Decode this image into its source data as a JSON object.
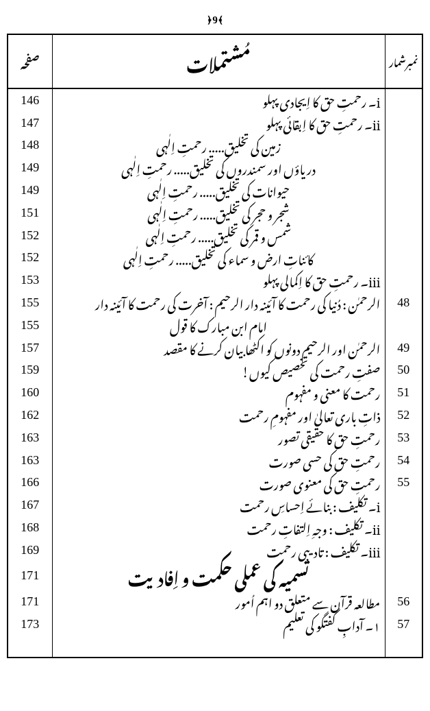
{
  "page_number": "9",
  "headers": {
    "serial": "نمبرشمار",
    "title": "مُشتملات",
    "page": "صفحہ"
  },
  "rows": [
    {
      "serial": "",
      "title": "i۔ رحمتِ حق کا اِیجادی پہلو",
      "page": "146",
      "style": "right"
    },
    {
      "serial": "",
      "title": "ii۔ رحمتِ حق کا اِبقائی پہلو",
      "page": "147",
      "style": "right"
    },
    {
      "serial": "",
      "title": "زمین کی تخلیق..... رحمتِ اِلٰہی",
      "page": "148",
      "style": "center"
    },
    {
      "serial": "",
      "title": "دریاؤں اور سمندروں کی تخلیق..... رحمتِ اِلٰہی",
      "page": "149",
      "style": "center"
    },
    {
      "serial": "",
      "title": "حیوانات کی تخلیق..... رحمتِ اِلٰہی",
      "page": "149",
      "style": "center"
    },
    {
      "serial": "",
      "title": "شجر و حجر کی تخلیق..... رحمتِ اِلٰہی",
      "page": "151",
      "style": "center"
    },
    {
      "serial": "",
      "title": "شمس و قمر کی تخلیق..... رحمتِ اِلٰہی",
      "page": "152",
      "style": "center"
    },
    {
      "serial": "",
      "title": "کائناتِ ارض و سماء کی تخلیق..... رحمتِ اِلٰہی",
      "page": "152",
      "style": "center"
    },
    {
      "serial": "",
      "title": "iii۔ رحمتِ حق کا اِکمالی پہلو",
      "page": "153",
      "style": "right"
    },
    {
      "serial": "48",
      "title": "الرحمٰن : دُنیا کی رحمت کا آئینہ دار  الرحیم : آخرت کی رحمت کا آئینہ دار",
      "page": "155",
      "style": "right"
    },
    {
      "serial": "",
      "title": "امام ابن مبارک کا قول",
      "page": "155",
      "style": "center"
    },
    {
      "serial": "49",
      "title": "الرحمٰن اور الرحیم دونوں کو اکٹھا بیان کرنے کا مقصد",
      "page": "157",
      "style": "right"
    },
    {
      "serial": "50",
      "title": "صفتِ رحمت کی تخصیص کیوں!",
      "page": "159",
      "style": "right"
    },
    {
      "serial": "51",
      "title": "رحمت کا معنی و مفہوم",
      "page": "160",
      "style": "right"
    },
    {
      "serial": "52",
      "title": "ذاتِ باری تعالیٰ اور مفہومِ رحمت",
      "page": "162",
      "style": "right"
    },
    {
      "serial": "53",
      "title": "رحمتِ حق کا حقیقی تصور",
      "page": "163",
      "style": "right"
    },
    {
      "serial": "54",
      "title": "رحمتِ حق کی حسی صورت",
      "page": "163",
      "style": "right"
    },
    {
      "serial": "55",
      "title": "رحمتِ حق کی معنوی صورت",
      "page": "166",
      "style": "right"
    },
    {
      "serial": "",
      "title": "i۔ تکلیف : بنائے اِحساسِ رحمت",
      "page": "167",
      "style": "right"
    },
    {
      "serial": "",
      "title": "ii۔ تکلیف : وجہِ اِلتفاتِ رحمت",
      "page": "168",
      "style": "right"
    },
    {
      "serial": "",
      "title": "iii۔ تکلیف : تادیبی رحمت",
      "page": "169",
      "style": "right"
    },
    {
      "serial": "",
      "title": "تسمیہ کی عملی حکمت و اِفادیت",
      "page": "171",
      "style": "section"
    },
    {
      "serial": "56",
      "title": "مطالعہ قرآن سے متعلق دو اہم اُمور",
      "page": "171",
      "style": "right"
    },
    {
      "serial": "57",
      "title": "۱۔ آدابِ گفتگو کی تعلیم",
      "page": "173",
      "style": "right"
    },
    {
      "serial": "",
      "title": "",
      "page": "",
      "style": "right"
    }
  ]
}
